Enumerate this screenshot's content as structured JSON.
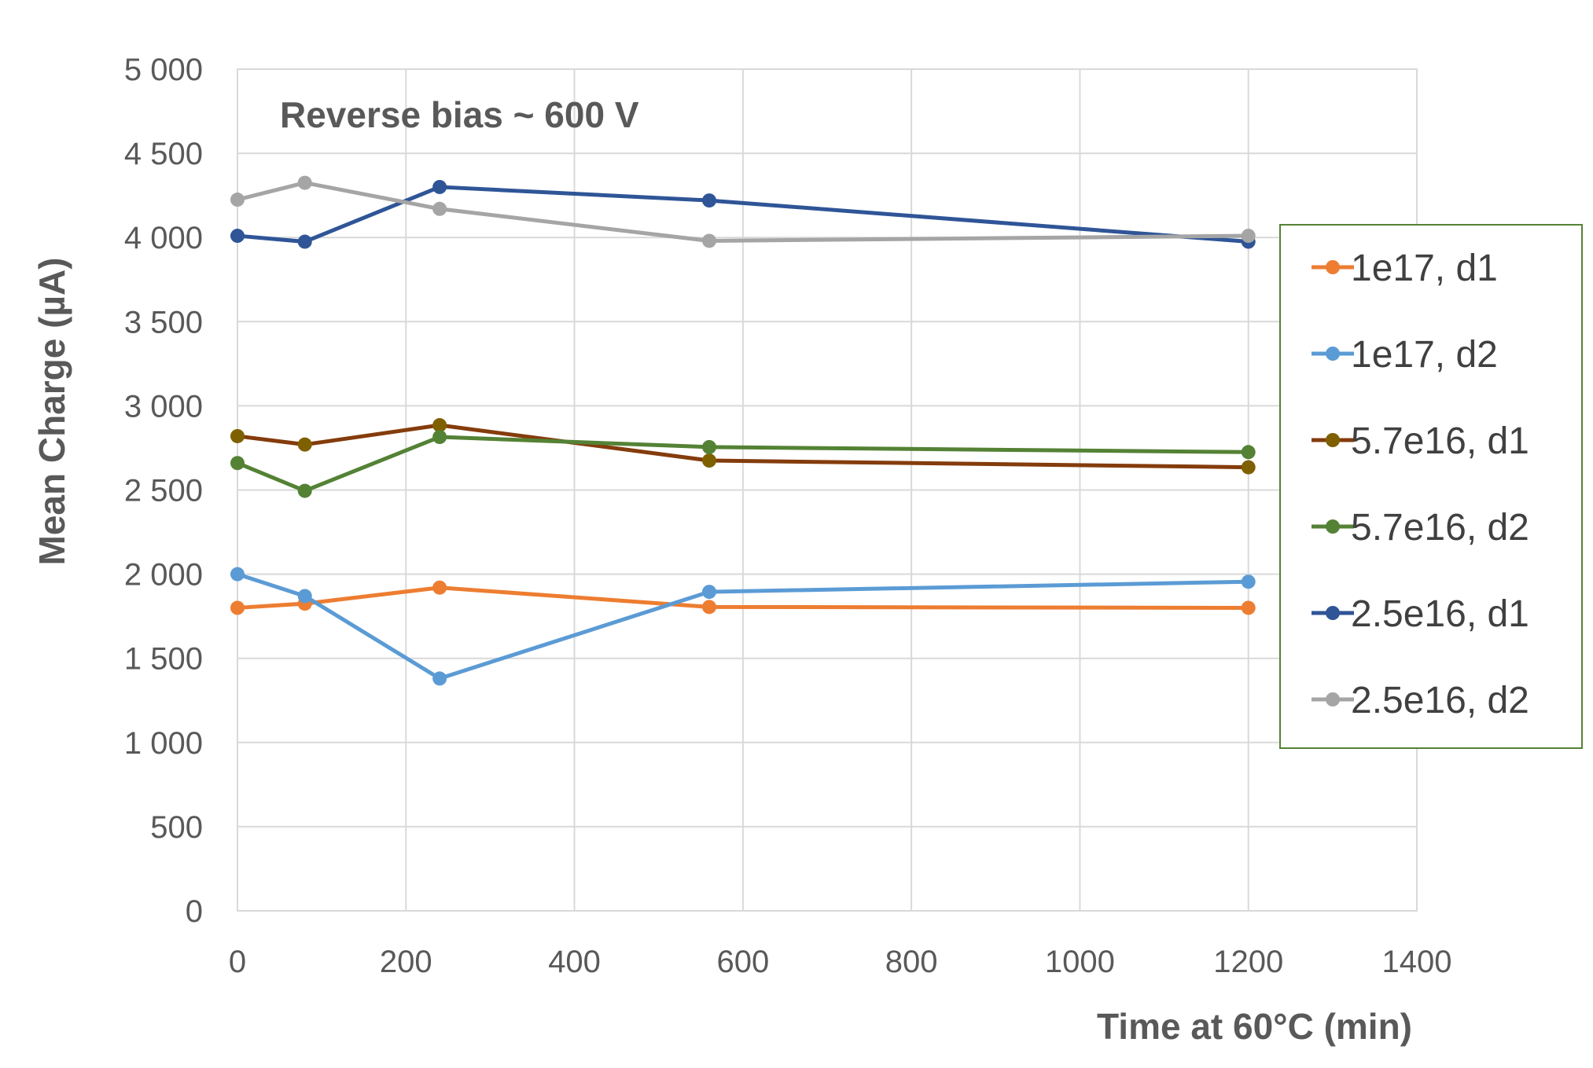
{
  "chart_data": {
    "type": "line",
    "xlabel": "Time at 60°C (min)",
    "ylabel": "Mean Charge (µA)",
    "annotation": "Reverse bias ~ 600 V",
    "xlim": [
      0,
      1400
    ],
    "ylim": [
      0,
      5000
    ],
    "x_ticks": [
      0,
      200,
      400,
      600,
      800,
      1000,
      1200,
      1400
    ],
    "x_tick_labels": [
      "0",
      "200",
      "400",
      "600",
      "800",
      "1000",
      "1200",
      "1400"
    ],
    "y_ticks": [
      0,
      500,
      1000,
      1500,
      2000,
      2500,
      3000,
      3500,
      4000,
      4500,
      5000
    ],
    "y_tick_labels": [
      "0",
      "500",
      "1 000",
      "1 500",
      "2 000",
      "2 500",
      "3 000",
      "3 500",
      "4 000",
      "4 500",
      "5 000"
    ],
    "grid": true,
    "legend_position": "right",
    "x": [
      0,
      80,
      240,
      560,
      1200
    ],
    "series": [
      {
        "name": "1e17, d1",
        "color": "#ED7D31",
        "marker_color": "#ED7D31",
        "values": [
          1800,
          1825,
          1920,
          1805,
          1800
        ]
      },
      {
        "name": "1e17, d2",
        "color": "#5B9BD5",
        "marker_color": "#5B9BD5",
        "values": [
          2000,
          1870,
          1380,
          1895,
          1955
        ]
      },
      {
        "name": "5.7e16, d1",
        "color": "#843C0C",
        "marker_color": "#7F6000",
        "values": [
          2820,
          2770,
          2885,
          2675,
          2635
        ]
      },
      {
        "name": "5.7e16, d2",
        "color": "#548235",
        "marker_color": "#548235",
        "values": [
          2660,
          2495,
          2815,
          2755,
          2725
        ]
      },
      {
        "name": "2.5e16, d1",
        "color": "#2F5597",
        "marker_color": "#2F5597",
        "values": [
          4010,
          3975,
          4300,
          4220,
          3975
        ]
      },
      {
        "name": "2.5e16, d2",
        "color": "#A5A5A5",
        "marker_color": "#A5A5A5",
        "values": [
          4225,
          4325,
          4170,
          3980,
          4010
        ]
      }
    ]
  }
}
